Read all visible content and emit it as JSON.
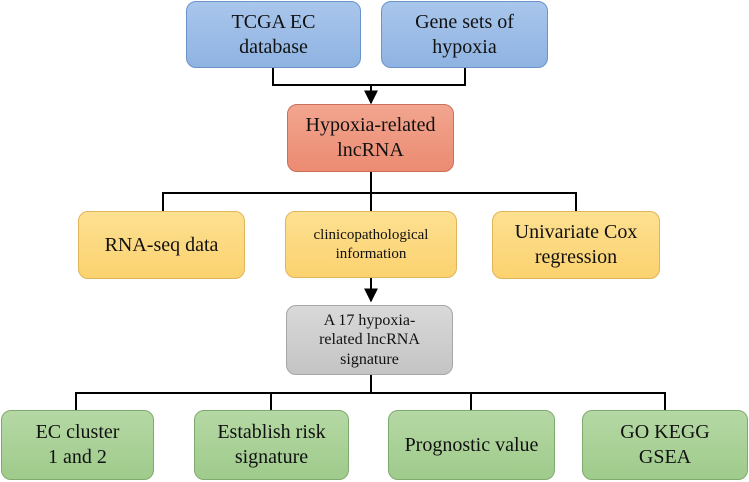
{
  "nodes": {
    "tcga": "TCGA EC\ndatabase",
    "genesets": "Gene sets of\nhypoxia",
    "hypoxia_lncrna": "Hypoxia-related\nlncRNA",
    "rnaseq": "RNA-seq data",
    "clinico": "clinicopathological\ninformation",
    "univariate": "Univariate Cox\nregression",
    "signature": "A 17 hypoxia-\nrelated lncRNA\nsignature",
    "cluster": "EC cluster\n1 and 2",
    "risk": "Establish risk\nsignature",
    "prognostic": "Prognostic value",
    "gokegg": "GO KEGG\nGSEA"
  },
  "colors": {
    "input": "#9bbce7",
    "hub": "#ee967e",
    "data": "#fcd97f",
    "signature": "#cfcfcf",
    "output": "#aad298",
    "connector": "#000000"
  }
}
